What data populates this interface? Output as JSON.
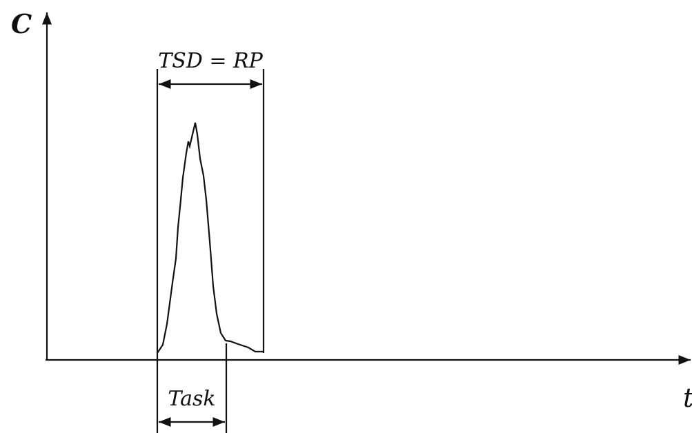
{
  "axes": {
    "y_label": "C",
    "x_label": "t"
  },
  "annotations": {
    "window": "TSD = RP",
    "task": "Task"
  }
}
